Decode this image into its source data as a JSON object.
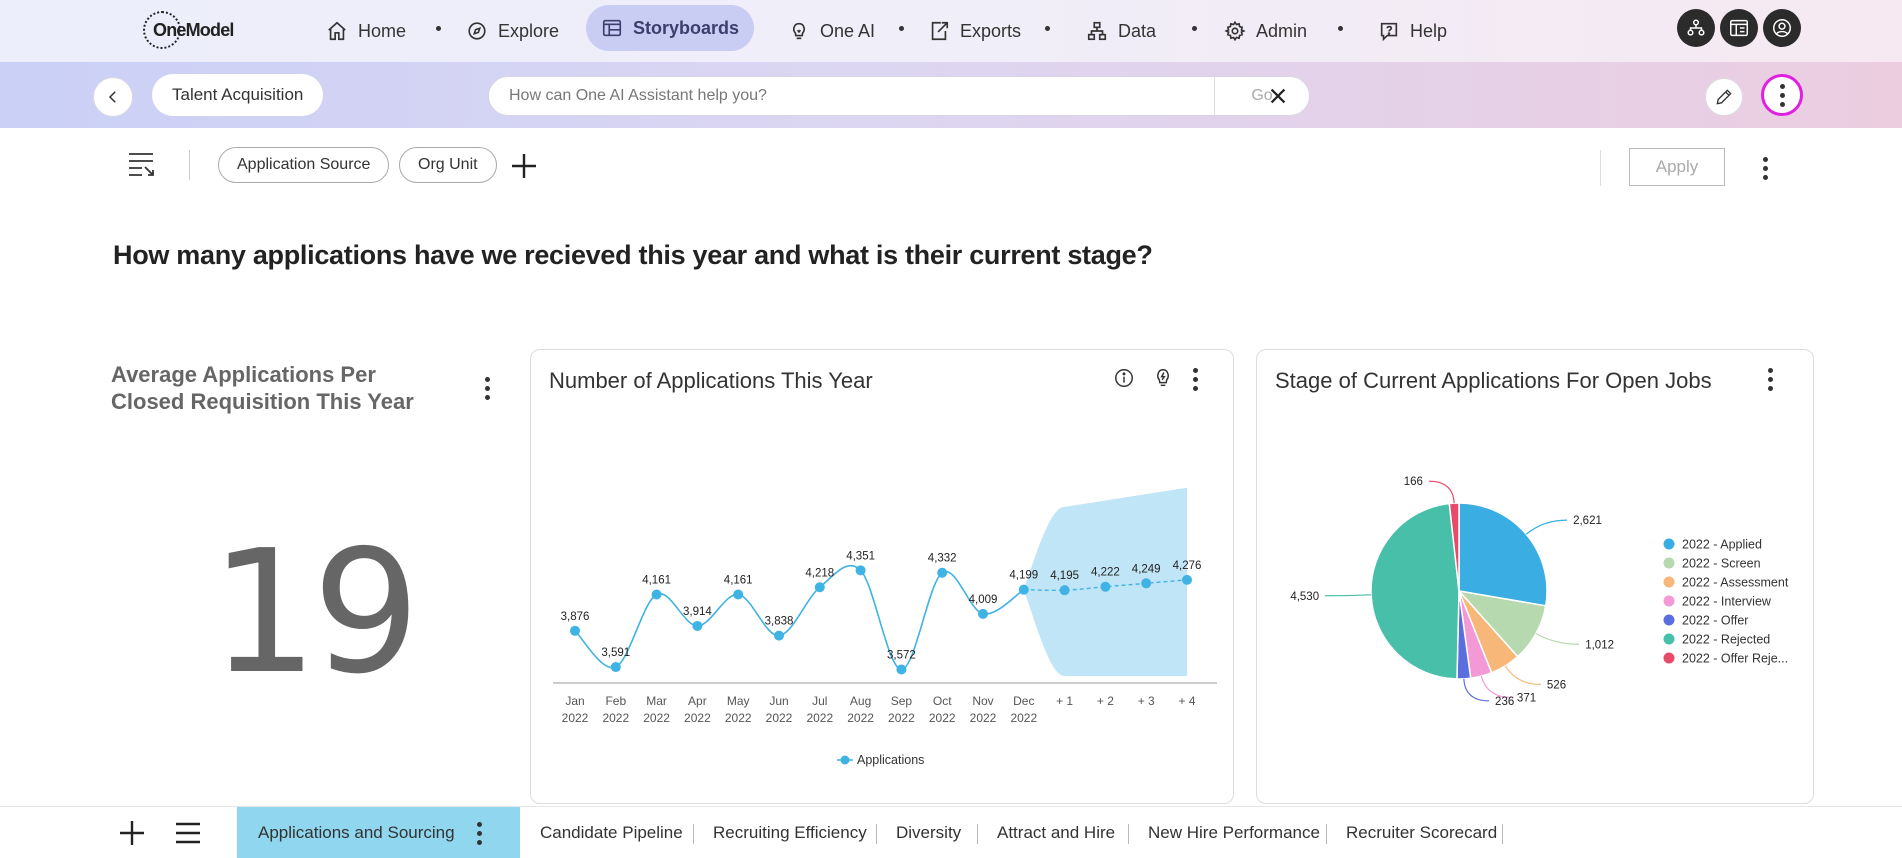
{
  "topnav": {
    "logo_text": "OneModel",
    "items": [
      {
        "label": "Home",
        "icon": "home-icon"
      },
      {
        "label": "Explore",
        "icon": "compass-icon"
      },
      {
        "label": "Storyboards",
        "icon": "storyboard-icon",
        "active": true
      },
      {
        "label": "One AI",
        "icon": "lightbulb-icon"
      },
      {
        "label": "Exports",
        "icon": "export-icon"
      },
      {
        "label": "Data",
        "icon": "hierarchy-icon"
      },
      {
        "label": "Admin",
        "icon": "gear-icon"
      },
      {
        "label": "Help",
        "icon": "help-icon"
      }
    ],
    "right_icons": [
      "org-chart-icon",
      "dashboard-icon",
      "user-account-icon"
    ]
  },
  "subbar": {
    "storyboard_name": "Talent Acquisition",
    "ai_placeholder": "How can One AI Assistant help you?",
    "go_label": "Go",
    "highlight_color": "#e020e0"
  },
  "filters": {
    "chips": [
      "Application Source",
      "Org Unit"
    ],
    "apply_label": "Apply"
  },
  "page": {
    "question": "How many applications have we recieved this year and what is their current stage?"
  },
  "kpi": {
    "title": "Average Applications Per Closed Requisition This Year",
    "value": "19"
  },
  "line_chart": {
    "title": "Number of Applications This Year",
    "legend": "Applications",
    "color": "#3fb3e3",
    "forecast_band_color": "#c0e5f7"
  },
  "pie_chart": {
    "title": "Stage of Current Applications For Open Jobs"
  },
  "chart_data": [
    {
      "type": "line",
      "title": "Number of Applications This Year",
      "categories": [
        [
          "Jan",
          "2022"
        ],
        [
          "Feb",
          "2022"
        ],
        [
          "Mar",
          "2022"
        ],
        [
          "Apr",
          "2022"
        ],
        [
          "May",
          "2022"
        ],
        [
          "Jun",
          "2022"
        ],
        [
          "Jul",
          "2022"
        ],
        [
          "Aug",
          "2022"
        ],
        [
          "Sep",
          "2022"
        ],
        [
          "Oct",
          "2022"
        ],
        [
          "Nov",
          "2022"
        ],
        [
          "Dec",
          "2022"
        ],
        [
          "+ 1",
          ""
        ],
        [
          "+ 2",
          ""
        ],
        [
          "+ 3",
          ""
        ],
        [
          "+ 4",
          ""
        ]
      ],
      "series": [
        {
          "name": "Applications",
          "values": [
            3876,
            3591,
            4161,
            3914,
            4161,
            3838,
            4218,
            4351,
            3572,
            4332,
            4009,
            4199,
            4195,
            4222,
            4249,
            4276
          ]
        }
      ],
      "value_labels": [
        "3,876",
        "3,591",
        "4,161",
        "3,914",
        "4,161",
        "3,838",
        "4,218",
        "4,351",
        "3,572",
        "4,332",
        "4,009",
        "4,199",
        "4,195",
        "4,222",
        "4,249",
        "4,276"
      ],
      "forecast_start_index": 11,
      "forecast_band": {
        "lower": [
          4199,
          3520,
          3520,
          3520,
          3520
        ],
        "upper": [
          4199,
          4850,
          4900,
          4950,
          5000
        ]
      },
      "ylim": [
        3450,
        5100
      ],
      "legend": "bottom"
    },
    {
      "type": "pie",
      "title": "Stage of Current Applications For Open Jobs",
      "slices": [
        {
          "name": "2022 - Applied",
          "value": 2621,
          "label": "2,621",
          "color": "#3aaee3"
        },
        {
          "name": "2022 - Screen",
          "value": 1012,
          "label": "1,012",
          "color": "#b7d9b0"
        },
        {
          "name": "2022 - Assessment",
          "value": 526,
          "label": "526",
          "color": "#f7b778"
        },
        {
          "name": "2022 - Interview",
          "value": 371,
          "label": "371",
          "color": "#f39ad6"
        },
        {
          "name": "2022 - Offer",
          "value": 236,
          "label": "236",
          "color": "#5b6ee0"
        },
        {
          "name": "2022 - Rejected",
          "value": 4530,
          "label": "4,530",
          "color": "#47bfa9"
        },
        {
          "name": "2022 - Offer Reje...",
          "value": 166,
          "label": "166",
          "color": "#ea4a6a"
        }
      ],
      "legend": "right"
    }
  ],
  "tabs": {
    "active": "Applications and Sourcing",
    "others": [
      "Candidate Pipeline",
      "Recruiting Efficiency",
      "Diversity",
      "Attract and Hire",
      "New Hire Performance",
      "Recruiter Scorecard"
    ]
  }
}
